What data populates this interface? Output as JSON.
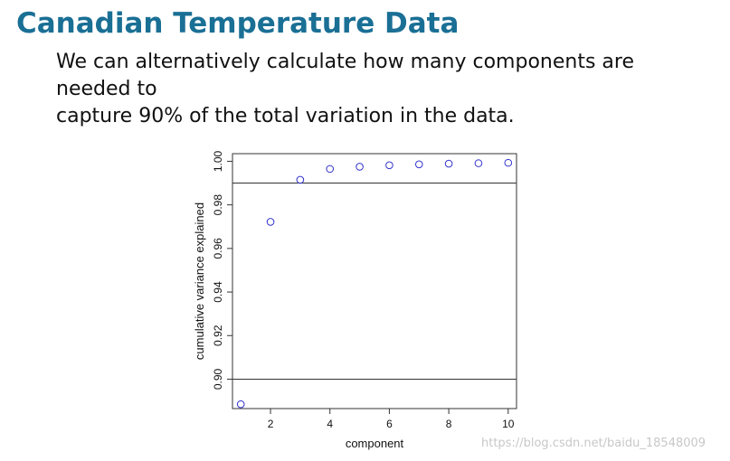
{
  "slide": {
    "title": "Canadian Temperature Data",
    "body_line1": "We can alternatively calculate how many components are needed to",
    "body_line2": "capture 90% of the total variation in the data."
  },
  "watermark": "https://blog.csdn.net/baidu_18548009",
  "chart_data": {
    "type": "scatter",
    "title": "",
    "xlabel": "component",
    "ylabel": "cumulative variance explained",
    "xlim": [
      0.72,
      10.28
    ],
    "ylim": [
      0.8865,
      1.0035
    ],
    "x_ticks": [
      2,
      4,
      6,
      8,
      10
    ],
    "y_ticks": [
      0.9,
      0.92,
      0.94,
      0.96,
      0.98,
      1.0
    ],
    "x_tick_labels": [
      "2",
      "4",
      "6",
      "8",
      "10"
    ],
    "y_tick_labels": [
      "0.90",
      "0.92",
      "0.94",
      "0.96",
      "0.98",
      "1.00"
    ],
    "hlines": [
      0.9,
      0.99
    ],
    "series": [
      {
        "x": [
          1,
          2,
          3,
          4,
          5,
          6,
          7,
          8,
          9,
          10
        ],
        "values": [
          0.8885,
          0.9722,
          0.9915,
          0.9965,
          0.9975,
          0.9982,
          0.9986,
          0.9989,
          0.9991,
          0.9993
        ],
        "color": "#3333cc",
        "marker": "open-circle"
      }
    ],
    "grid": false,
    "legend": "none"
  }
}
